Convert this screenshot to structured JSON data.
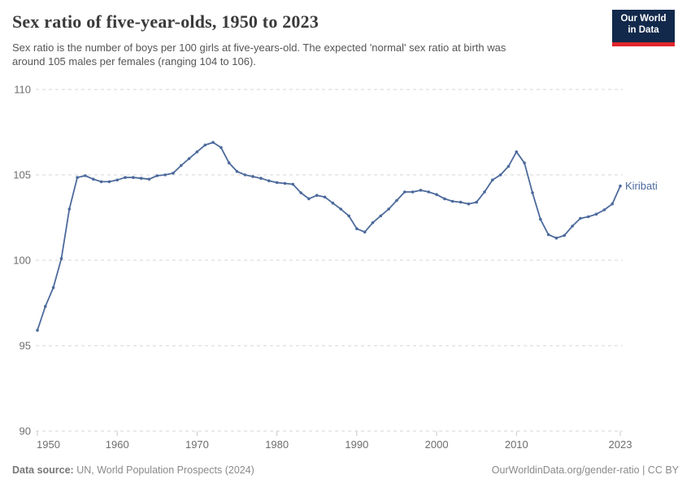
{
  "header": {
    "title": "Sex ratio of five-year-olds, 1950 to 2023",
    "subtitle_line1": "Sex ratio is the number of boys per 100 girls at five-years-old. The expected 'normal' sex ratio at birth was",
    "subtitle_line2": "around 105 males per females (ranging 104 to 106).",
    "logo": {
      "line1": "Our World",
      "line2": "in Data",
      "bg": "#12294b",
      "accent": "#e0262c"
    }
  },
  "chart_data": {
    "type": "line",
    "title": "Sex ratio of five-year-olds, 1950 to 2023",
    "xlabel": "",
    "ylabel": "",
    "xlim": [
      1950,
      2023
    ],
    "ylim": [
      90,
      110
    ],
    "y_ticks": [
      90,
      95,
      100,
      105,
      110
    ],
    "x_ticks": [
      1950,
      1960,
      1970,
      1980,
      1990,
      2000,
      2010,
      2023
    ],
    "grid": "horizontal-dashed",
    "legend_position": "end-of-line-label",
    "x": [
      1950,
      1951,
      1952,
      1953,
      1954,
      1955,
      1956,
      1957,
      1958,
      1959,
      1960,
      1961,
      1962,
      1963,
      1964,
      1965,
      1966,
      1967,
      1968,
      1969,
      1970,
      1971,
      1972,
      1973,
      1974,
      1975,
      1976,
      1977,
      1978,
      1979,
      1980,
      1981,
      1982,
      1983,
      1984,
      1985,
      1986,
      1987,
      1988,
      1989,
      1990,
      1991,
      1992,
      1993,
      1994,
      1995,
      1996,
      1997,
      1998,
      1999,
      2000,
      2001,
      2002,
      2003,
      2004,
      2005,
      2006,
      2007,
      2008,
      2009,
      2010,
      2011,
      2012,
      2013,
      2014,
      2015,
      2016,
      2017,
      2018,
      2019,
      2020,
      2021,
      2022,
      2023
    ],
    "series": [
      {
        "name": "Kiribati",
        "color": "#4C6A9C",
        "values": [
          95.9,
          97.3,
          98.4,
          100.1,
          103.0,
          104.85,
          104.95,
          104.75,
          104.6,
          104.6,
          104.7,
          104.85,
          104.85,
          104.8,
          104.75,
          104.95,
          105.0,
          105.1,
          105.55,
          105.95,
          106.35,
          106.75,
          106.9,
          106.6,
          105.7,
          105.2,
          105.0,
          104.9,
          104.8,
          104.65,
          104.55,
          104.5,
          104.45,
          103.95,
          103.6,
          103.8,
          103.7,
          103.35,
          103.0,
          102.6,
          101.85,
          101.65,
          102.2,
          102.6,
          103.0,
          103.5,
          104.0,
          104.0,
          104.1,
          104.0,
          103.85,
          103.6,
          103.45,
          103.4,
          103.3,
          103.4,
          104.0,
          104.7,
          105.0,
          105.5,
          106.35,
          105.7,
          103.95,
          102.4,
          101.5,
          101.3,
          101.45,
          102.0,
          102.45,
          102.55,
          102.7,
          102.95,
          103.3,
          104.35
        ]
      }
    ],
    "colors": {
      "gridline": "#d6d6d6",
      "tick_label": "#6e6e6e",
      "tick_mark": "#c8c8c8"
    }
  },
  "footer": {
    "source_label": "Data source:",
    "source_text": "UN, World Population Prospects (2024)",
    "link_text": "OurWorldinData.org/gender-ratio | CC BY"
  }
}
